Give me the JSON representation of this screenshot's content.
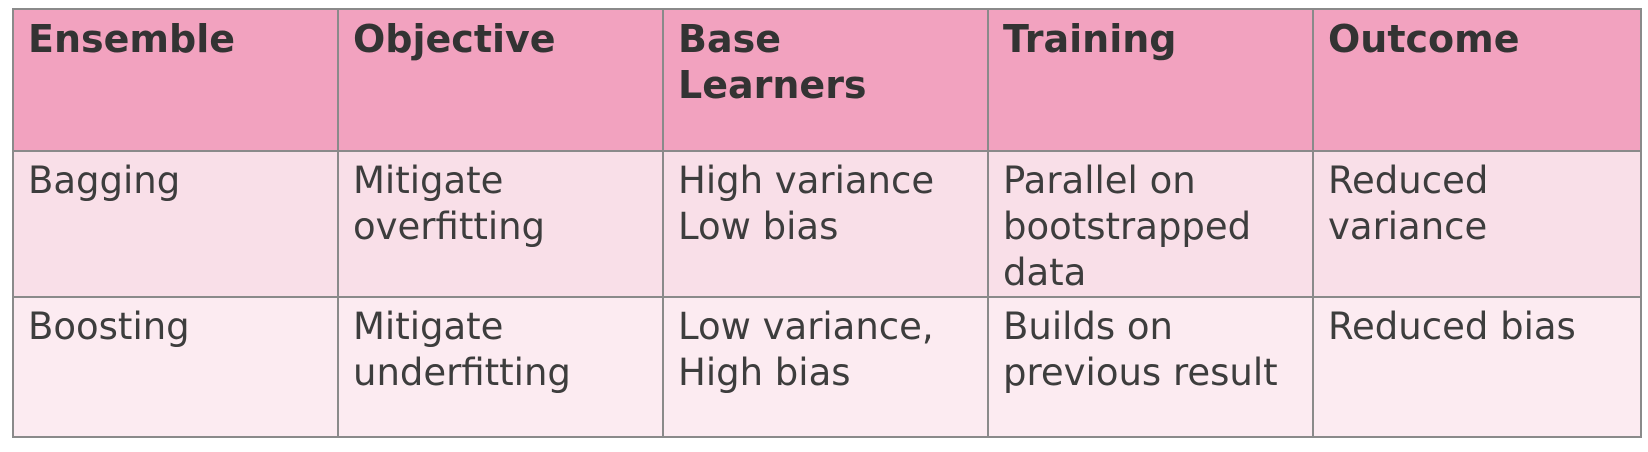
{
  "table": {
    "headers": [
      "Ensemble",
      "Objective",
      "Base\nLearners",
      "Training",
      "Outcome"
    ],
    "rows": [
      [
        "Bagging",
        "Mitigate\noverfitting",
        "High variance\nLow bias",
        "Parallel on\nbootstrapped\ndata",
        "Reduced\nvariance"
      ],
      [
        "Boosting",
        "Mitigate\nunderfitting",
        "Low variance,\nHigh bias",
        "Builds on\nprevious result",
        "Reduced bias"
      ]
    ]
  },
  "colors": {
    "header_bg": "#f2a2bf",
    "row1_bg": "#f9dfe8",
    "row2_bg": "#fcebf1",
    "border": "#8a8a8a"
  }
}
